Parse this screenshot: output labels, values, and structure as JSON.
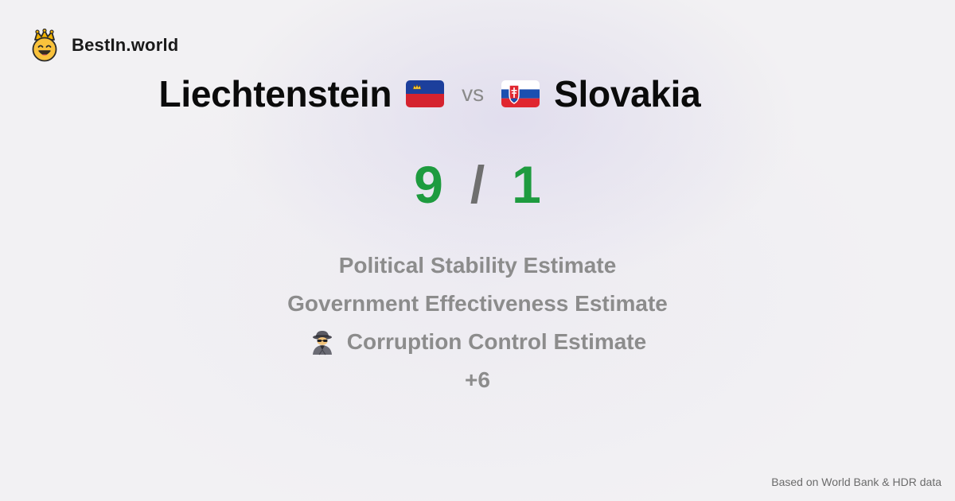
{
  "brand": {
    "name": "BestIn.world",
    "icon": "crowned-smiley-icon"
  },
  "comparison": {
    "left_country": "Liechtenstein",
    "left_flag": "liechtenstein-flag-icon",
    "vs_label": "vs",
    "right_country": "Slovakia",
    "right_flag": "slovakia-flag-icon"
  },
  "score": {
    "left": "9",
    "separator": "/",
    "right": "1",
    "color": "#1e9b3f"
  },
  "metrics": [
    {
      "label": "Political Stability Estimate"
    },
    {
      "label": "Government Effectiveness Estimate"
    },
    {
      "label": "Corruption Control Estimate",
      "icon": "detective-icon"
    }
  ],
  "more_label": "+6",
  "footer": {
    "source": "Based on World Bank & HDR data"
  }
}
